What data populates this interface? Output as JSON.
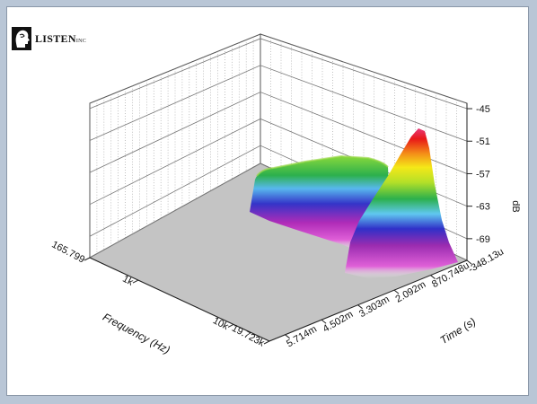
{
  "brand": {
    "name": "LISTEN",
    "suffix": "INC",
    "logo_icon": "head-profile-logo-icon"
  },
  "chart_data": {
    "type": "waterfall-3d",
    "title": "",
    "z_axis": {
      "label": "dB",
      "ticks": [
        "-45",
        "-51",
        "-57",
        "-63",
        "-69"
      ],
      "range": [
        -73,
        -44
      ]
    },
    "frequency_axis": {
      "label": "Frequency (Hz)",
      "ticks": [
        "165.799",
        "1k",
        "10k",
        "19.723k"
      ],
      "scale": "log"
    },
    "time_axis": {
      "label": "Time (s)",
      "ticks": [
        "-348.13u",
        "870.748u",
        "2.092m",
        "3.303m",
        "4.502m",
        "5.714m"
      ]
    },
    "colormap": [
      "#d235c8",
      "#7a3aa8",
      "#3140c8",
      "#4aa8e8",
      "#7ee0e0",
      "#3cb44a",
      "#98e030",
      "#f0e81c",
      "#f49018",
      "#e81818",
      "#e83070"
    ],
    "colors": {
      "floor": "#c4c4c4",
      "grid": "#888888",
      "background": "#ffffff",
      "page": "#b9c6d6"
    }
  }
}
